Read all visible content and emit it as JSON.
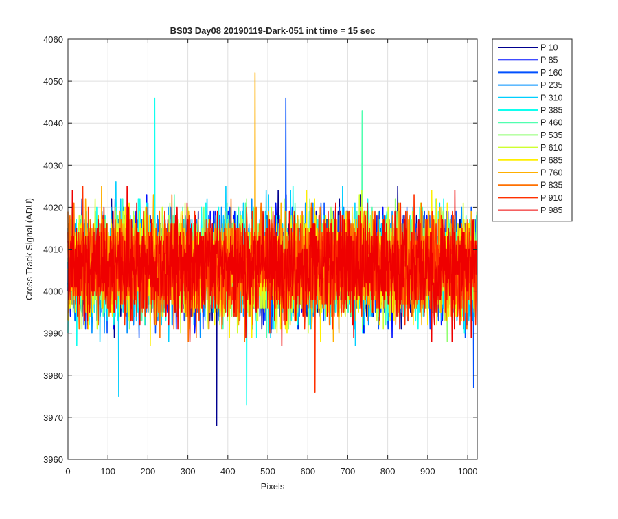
{
  "chart_data": {
    "type": "line",
    "title": "BS03 Day08 20190119-Dark-051 int time = 15 sec",
    "xlabel": "Pixels",
    "ylabel": "Cross Track Signal (ADU)",
    "xlim": [
      0,
      1024
    ],
    "ylim": [
      3960,
      4060
    ],
    "xticks": [
      0,
      100,
      200,
      300,
      400,
      500,
      600,
      700,
      800,
      900,
      1000
    ],
    "yticks": [
      3960,
      3970,
      3980,
      3990,
      4000,
      4010,
      4020,
      4030,
      4040,
      4050,
      4060
    ],
    "grid": true,
    "legend_position": "outside-right",
    "n_points": 1024,
    "signal_profile": {
      "mean": 4006,
      "spread": 6
    },
    "series": [
      {
        "name": "P 10",
        "color": "#00008f"
      },
      {
        "name": "P 85",
        "color": "#0010ff"
      },
      {
        "name": "P 160",
        "color": "#0050ff"
      },
      {
        "name": "P 235",
        "color": "#0090ff"
      },
      {
        "name": "P 310",
        "color": "#00cfff"
      },
      {
        "name": "P 385",
        "color": "#10ffef"
      },
      {
        "name": "P 460",
        "color": "#50ffaf"
      },
      {
        "name": "P 535",
        "color": "#8fff70"
      },
      {
        "name": "P 610",
        "color": "#cfff30"
      },
      {
        "name": "P 685",
        "color": "#ffef00"
      },
      {
        "name": "P 760",
        "color": "#ffaf00"
      },
      {
        "name": "P 835",
        "color": "#ff7000"
      },
      {
        "name": "P 910",
        "color": "#ff3000"
      },
      {
        "name": "P 985",
        "color": "#ef0000"
      }
    ],
    "annotated_extremes": [
      {
        "series": "P 760",
        "x": 468,
        "y": 4052
      },
      {
        "series": "P 160",
        "x": 545,
        "y": 4046
      },
      {
        "series": "P 385",
        "x": 217,
        "y": 4046
      },
      {
        "series": "P 460",
        "x": 736,
        "y": 4043
      },
      {
        "series": "P 10",
        "x": 372,
        "y": 3968
      },
      {
        "series": "P 385",
        "x": 447,
        "y": 3973
      },
      {
        "series": "P 310",
        "x": 127,
        "y": 3975
      },
      {
        "series": "P 910",
        "x": 618,
        "y": 3976
      },
      {
        "series": "P 160",
        "x": 1015,
        "y": 3977
      }
    ]
  }
}
